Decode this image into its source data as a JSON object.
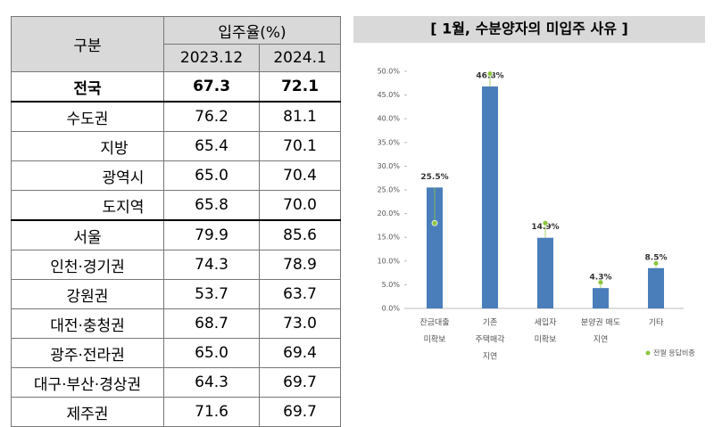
{
  "table": {
    "header": {
      "group": "구분",
      "rate": "입주율(%)",
      "periods": [
        "2023.12",
        "2024.1"
      ]
    },
    "rows": [
      [
        "전국",
        "67.3",
        "72.1"
      ],
      [
        "수도권",
        "76.2",
        "81.1"
      ],
      [
        "지방",
        "65.4",
        "70.1"
      ],
      [
        "광역시",
        "65.0",
        "70.4"
      ],
      [
        "도지역",
        "65.8",
        "70.0"
      ],
      [
        "서울",
        "79.9",
        "85.6"
      ],
      [
        "인천·경기권",
        "74.3",
        "78.9"
      ],
      [
        "강원권",
        "53.7",
        "63.7"
      ],
      [
        "대전·충청권",
        "68.7",
        "73.0"
      ],
      [
        "광주·전라권",
        "65.0",
        "69.4"
      ],
      [
        "대구·부산·경상권",
        "64.3",
        "69.7"
      ],
      [
        "제주권",
        "71.6",
        "69.7"
      ]
    ]
  },
  "chart_data": {
    "type": "bar",
    "title": "[ 1월, 수분양자의 미입주 사유 ]",
    "categories": [
      [
        "잔금대출",
        "미확보"
      ],
      [
        "기존",
        "주택매각",
        "지연"
      ],
      [
        "세입자",
        "미확보"
      ],
      [
        "분양권 매도",
        "지연"
      ],
      [
        "기타"
      ]
    ],
    "values": [
      25.5,
      46.8,
      14.9,
      4.3,
      8.5
    ],
    "value_labels": [
      "25.5%",
      "46.8%",
      "14.9%",
      "4.3%",
      "8.5%"
    ],
    "color": "#4a7ebb",
    "series": [
      {
        "name": "전월 응답비중",
        "color": "#8dc63f",
        "values": [
          18,
          49.5,
          18,
          5.5,
          9.5
        ]
      }
    ],
    "ylim": [
      0,
      50
    ],
    "yticks": [
      {
        "value": 0,
        "label": "0.0%"
      },
      {
        "value": 5,
        "label": "5.0%"
      },
      {
        "value": 10,
        "label": "10.0%"
      },
      {
        "value": 15,
        "label": "15.0%"
      },
      {
        "value": 20,
        "label": "20.0%"
      },
      {
        "value": 25,
        "label": "25.0%"
      },
      {
        "value": 30,
        "label": "30.0%"
      },
      {
        "value": 35,
        "label": "35.0%"
      },
      {
        "value": 40,
        "label": "40.0%"
      },
      {
        "value": 45,
        "label": "45.0%"
      },
      {
        "value": 50,
        "label": "50.0%"
      }
    ]
  }
}
